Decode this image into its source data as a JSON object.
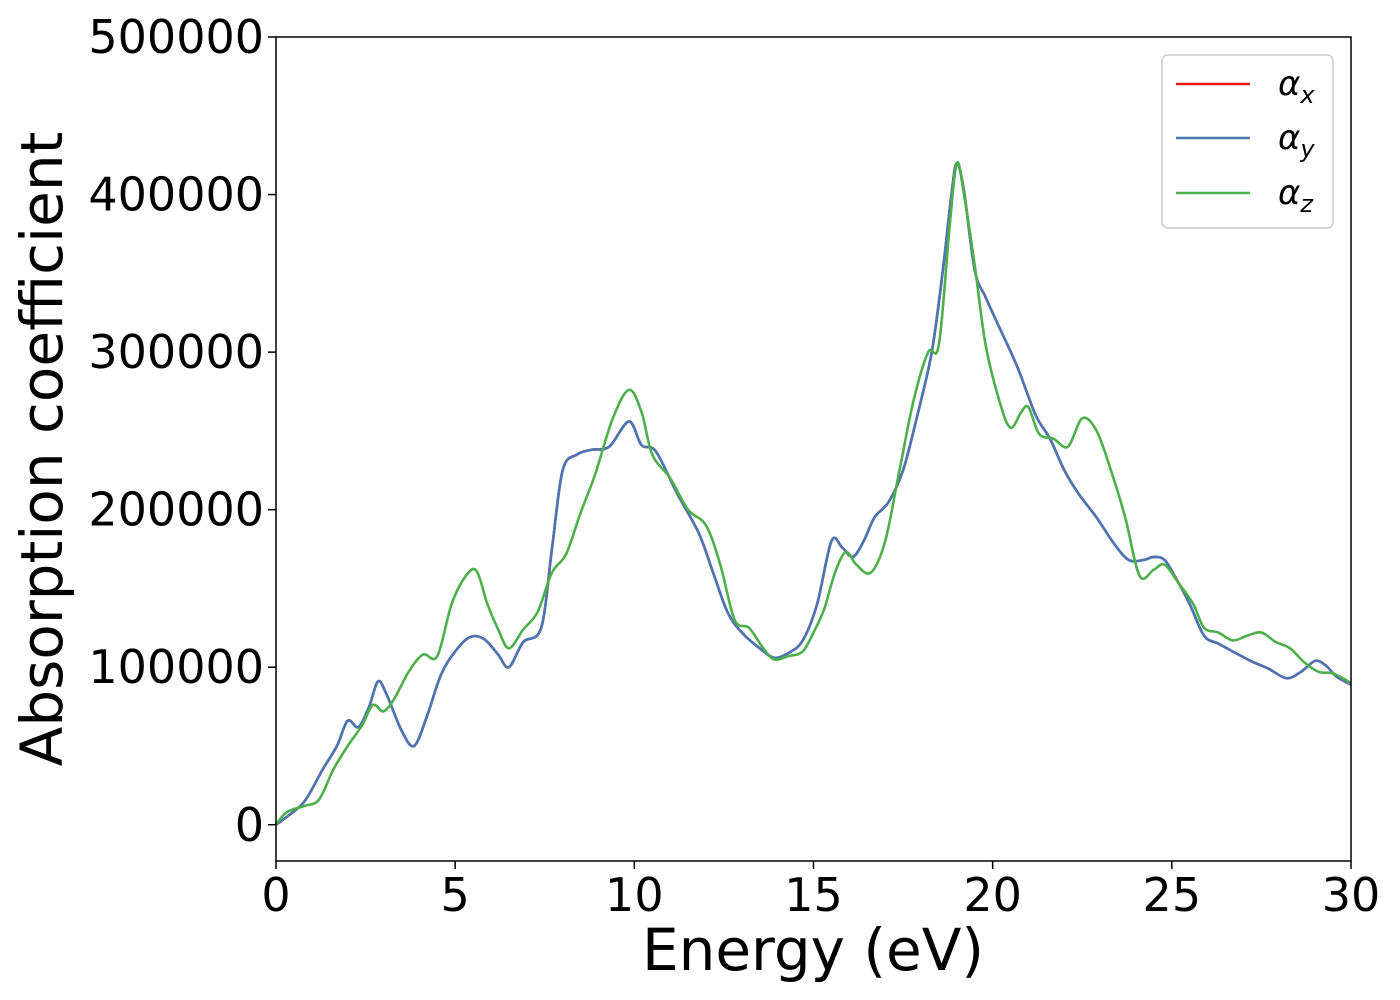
{
  "chart_data": {
    "type": "line",
    "title": "",
    "xlabel": "Energy (eV)",
    "ylabel": "Absorption coefficient",
    "xlim": [
      0,
      30
    ],
    "ylim": [
      -23000,
      500000
    ],
    "xticks": [
      0,
      5,
      10,
      15,
      20,
      25,
      30
    ],
    "yticks": [
      0,
      100000,
      200000,
      300000,
      400000,
      500000
    ],
    "grid": false,
    "legend_position": "top-right",
    "series": [
      {
        "name": "α",
        "subscript": "x",
        "color": "#e41a1c",
        "x": [
          0,
          0.3,
          0.8,
          1.3,
          1.7,
          2.0,
          2.3,
          2.6,
          2.85,
          3.1,
          3.5,
          3.85,
          4.2,
          4.6,
          5.0,
          5.4,
          5.8,
          6.2,
          6.5,
          6.9,
          7.4,
          7.7,
          8.0,
          8.4,
          8.8,
          9.3,
          9.85,
          10.2,
          10.6,
          11.2,
          11.8,
          12.2,
          12.6,
          13.0,
          13.5,
          13.9,
          14.3,
          14.7,
          15.1,
          15.5,
          15.8,
          16.1,
          16.4,
          16.7,
          17.1,
          17.5,
          17.9,
          18.3,
          18.6,
          18.85,
          19.0,
          19.2,
          19.5,
          19.8,
          20.2,
          20.7,
          21.2,
          21.6,
          22.0,
          22.4,
          22.9,
          23.4,
          23.8,
          24.2,
          24.5,
          24.8,
          25.1,
          25.5,
          25.9,
          26.3,
          26.7,
          27.2,
          27.7,
          28.2,
          28.6,
          29.0,
          29.3,
          29.6,
          30.0
        ],
        "y": [
          0,
          5000,
          15000,
          35000,
          50000,
          66000,
          62000,
          75000,
          91000,
          82000,
          60000,
          50000,
          68000,
          95000,
          110000,
          119000,
          118000,
          108000,
          100000,
          116000,
          125000,
          175000,
          225000,
          235000,
          238000,
          240000,
          256000,
          241000,
          237000,
          210000,
          185000,
          160000,
          135000,
          122000,
          112000,
          106000,
          109000,
          117000,
          140000,
          180000,
          176000,
          170000,
          180000,
          195000,
          205000,
          225000,
          260000,
          300000,
          350000,
          400000,
          420000,
          402000,
          352000,
          335000,
          315000,
          290000,
          260000,
          245000,
          225000,
          210000,
          195000,
          178000,
          168000,
          168000,
          170000,
          168000,
          157000,
          140000,
          120000,
          115000,
          110000,
          104000,
          99000,
          93000,
          97000,
          104000,
          101000,
          94000,
          89000
        ]
      },
      {
        "name": "α",
        "subscript": "y",
        "color": "#4a76b5",
        "x": [
          0,
          0.3,
          0.8,
          1.3,
          1.7,
          2.0,
          2.3,
          2.6,
          2.85,
          3.1,
          3.5,
          3.85,
          4.2,
          4.6,
          5.0,
          5.4,
          5.8,
          6.2,
          6.5,
          6.9,
          7.4,
          7.7,
          8.0,
          8.4,
          8.8,
          9.3,
          9.85,
          10.2,
          10.6,
          11.2,
          11.8,
          12.2,
          12.6,
          13.0,
          13.5,
          13.9,
          14.3,
          14.7,
          15.1,
          15.5,
          15.8,
          16.1,
          16.4,
          16.7,
          17.1,
          17.5,
          17.9,
          18.3,
          18.6,
          18.85,
          19.0,
          19.2,
          19.5,
          19.8,
          20.2,
          20.7,
          21.2,
          21.6,
          22.0,
          22.4,
          22.9,
          23.4,
          23.8,
          24.2,
          24.5,
          24.8,
          25.1,
          25.5,
          25.9,
          26.3,
          26.7,
          27.2,
          27.7,
          28.2,
          28.6,
          29.0,
          29.3,
          29.6,
          30.0
        ],
        "y": [
          0,
          5000,
          15000,
          35000,
          50000,
          66000,
          62000,
          75000,
          91000,
          82000,
          60000,
          50000,
          68000,
          95000,
          110000,
          119000,
          118000,
          108000,
          100000,
          116000,
          125000,
          175000,
          225000,
          235000,
          238000,
          240000,
          256000,
          241000,
          237000,
          210000,
          185000,
          160000,
          135000,
          122000,
          112000,
          106000,
          109000,
          117000,
          140000,
          180000,
          176000,
          170000,
          180000,
          195000,
          205000,
          225000,
          260000,
          300000,
          350000,
          400000,
          420000,
          402000,
          352000,
          335000,
          315000,
          290000,
          260000,
          245000,
          225000,
          210000,
          195000,
          178000,
          168000,
          168000,
          170000,
          168000,
          157000,
          140000,
          120000,
          115000,
          110000,
          104000,
          99000,
          93000,
          97000,
          104000,
          101000,
          94000,
          89000
        ]
      },
      {
        "name": "α",
        "subscript": "z",
        "color": "#4daf4a",
        "x": [
          0,
          0.3,
          0.8,
          1.2,
          1.6,
          2.0,
          2.4,
          2.7,
          3.0,
          3.3,
          3.7,
          4.1,
          4.5,
          4.9,
          5.3,
          5.6,
          5.9,
          6.2,
          6.5,
          6.9,
          7.3,
          7.7,
          8.1,
          8.5,
          8.9,
          9.4,
          9.85,
          10.2,
          10.5,
          11.0,
          11.5,
          12.0,
          12.4,
          12.8,
          13.2,
          13.6,
          13.9,
          14.3,
          14.7,
          15.0,
          15.3,
          15.6,
          15.9,
          16.2,
          16.6,
          17.0,
          17.4,
          17.8,
          18.2,
          18.5,
          18.8,
          19.0,
          19.2,
          19.5,
          19.8,
          20.2,
          20.5,
          20.8,
          21.0,
          21.3,
          21.7,
          22.1,
          22.5,
          22.9,
          23.3,
          23.7,
          24.1,
          24.5,
          24.8,
          25.2,
          25.6,
          25.9,
          26.3,
          26.7,
          27.1,
          27.5,
          27.9,
          28.3,
          28.7,
          29.1,
          29.5,
          30.0
        ],
        "y": [
          0,
          8000,
          12000,
          16000,
          35000,
          50000,
          63000,
          76000,
          72000,
          80000,
          97000,
          108000,
          107000,
          140000,
          158000,
          161000,
          140000,
          124000,
          112000,
          124000,
          135000,
          160000,
          172000,
          198000,
          222000,
          258000,
          276000,
          262000,
          235000,
          220000,
          200000,
          190000,
          165000,
          130000,
          125000,
          112000,
          105000,
          107000,
          110000,
          122000,
          137000,
          160000,
          173000,
          165000,
          160000,
          180000,
          225000,
          270000,
          300000,
          305000,
          380000,
          420000,
          400000,
          355000,
          305000,
          268000,
          252000,
          262000,
          265000,
          248000,
          245000,
          240000,
          258000,
          250000,
          225000,
          195000,
          158000,
          162000,
          165000,
          153000,
          140000,
          125000,
          122000,
          117000,
          120000,
          122000,
          116000,
          112000,
          103000,
          97000,
          96000,
          90000
        ]
      }
    ]
  }
}
